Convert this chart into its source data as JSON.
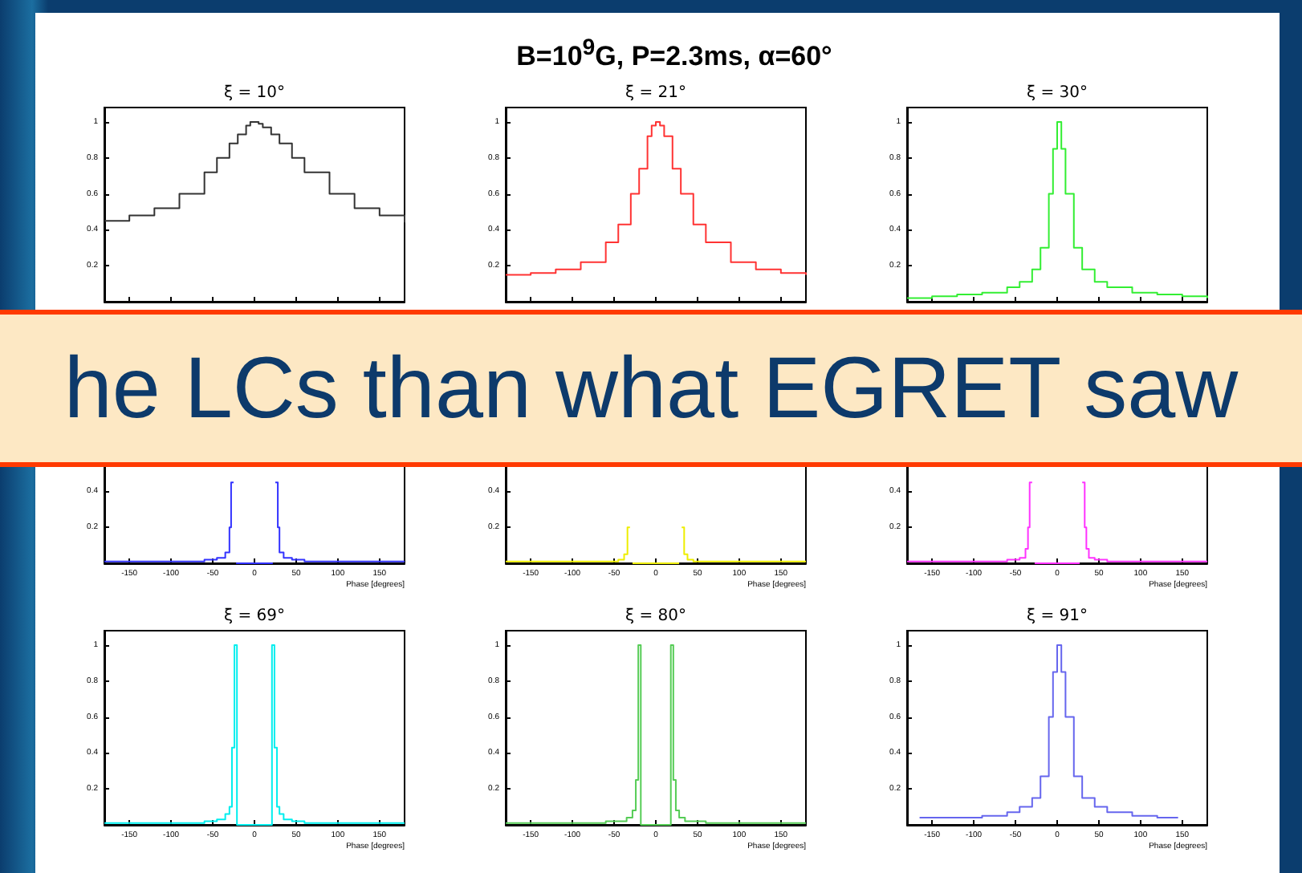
{
  "chart_data": [
    {
      "type": "other",
      "title": "B=10$^{9}$G, P=2.3ms, α=60°",
      "annotations": [
        "he LCs than what EGRET saw"
      ]
    },
    {
      "type": "step",
      "title": "ξ = 10°",
      "color": "#333333",
      "line_style": "solid",
      "marker": "none",
      "tick_labels": "y",
      "xlim": [
        -180,
        180
      ],
      "xticks": [
        -150,
        -100,
        -50,
        0,
        50,
        100,
        150
      ],
      "ylim": [
        0,
        1.08
      ],
      "yticks": [
        0.2,
        0.4,
        0.6,
        0.8,
        1
      ],
      "x": [
        -180,
        -150,
        -120,
        -90,
        -60,
        -45,
        -30,
        -20,
        -10,
        -5,
        0,
        5,
        10,
        20,
        30,
        45,
        60,
        90,
        120,
        150,
        180
      ],
      "values": [
        0.45,
        0.48,
        0.52,
        0.6,
        0.72,
        0.8,
        0.88,
        0.93,
        0.98,
        1,
        1,
        0.99,
        0.97,
        0.93,
        0.88,
        0.8,
        0.72,
        0.6,
        0.52,
        0.48,
        0.44
      ]
    },
    {
      "type": "step",
      "title": "ξ = 21°",
      "color": "#ff3333",
      "line_style": "solid",
      "marker": "none",
      "tick_labels": "y",
      "xlim": [
        -180,
        180
      ],
      "xticks": [
        -150,
        -100,
        -50,
        0,
        50,
        100,
        150
      ],
      "ylim": [
        0,
        1.08
      ],
      "yticks": [
        0.2,
        0.4,
        0.6,
        0.8,
        1
      ],
      "x": [
        -180,
        -150,
        -120,
        -90,
        -60,
        -45,
        -30,
        -20,
        -10,
        -5,
        0,
        5,
        10,
        20,
        30,
        45,
        60,
        90,
        120,
        150,
        180
      ],
      "values": [
        0.15,
        0.16,
        0.18,
        0.22,
        0.33,
        0.43,
        0.6,
        0.74,
        0.92,
        0.98,
        1,
        0.98,
        0.92,
        0.74,
        0.6,
        0.43,
        0.33,
        0.22,
        0.18,
        0.16,
        0.15
      ]
    },
    {
      "type": "step",
      "title": "ξ = 30°",
      "color": "#33ee33",
      "line_style": "solid",
      "marker": "none",
      "tick_labels": "y",
      "xlim": [
        -180,
        180
      ],
      "xticks": [
        -150,
        -100,
        -50,
        0,
        50,
        100,
        150
      ],
      "ylim": [
        0,
        1.08
      ],
      "yticks": [
        0.2,
        0.4,
        0.6,
        0.8,
        1
      ],
      "x": [
        -180,
        -150,
        -120,
        -90,
        -60,
        -45,
        -30,
        -20,
        -10,
        -5,
        0,
        5,
        10,
        20,
        30,
        45,
        60,
        90,
        120,
        150,
        180
      ],
      "values": [
        0.02,
        0.03,
        0.04,
        0.05,
        0.08,
        0.11,
        0.18,
        0.3,
        0.6,
        0.85,
        1,
        0.85,
        0.6,
        0.3,
        0.18,
        0.11,
        0.08,
        0.05,
        0.04,
        0.03,
        0.02
      ]
    },
    {
      "type": "step",
      "xlabel": "Phase [degrees]",
      "color": "#3333ff",
      "line_style": "solid",
      "marker": "none",
      "xlim": [
        -180,
        180
      ],
      "xticks": [
        -150,
        -100,
        -50,
        0,
        50,
        100,
        150
      ],
      "ylim": [
        0,
        1.08
      ],
      "yticks": [
        0.2,
        0.4
      ],
      "x": [
        -180,
        -90,
        -60,
        -45,
        -35,
        -30,
        -28,
        -25,
        -22,
        22,
        25,
        28,
        30,
        35,
        45,
        60,
        90,
        180
      ],
      "values": [
        0.01,
        0.01,
        0.02,
        0.03,
        0.06,
        0.2,
        0.45,
        null,
        0,
        null,
        0.45,
        0.2,
        0.06,
        0.03,
        0.02,
        0.01,
        0.01,
        0.01
      ]
    },
    {
      "type": "step",
      "xlabel": "Phase [degrees]",
      "color": "#eeee00",
      "line_style": "solid",
      "marker": "none",
      "xlim": [
        -180,
        180
      ],
      "xticks": [
        -150,
        -100,
        -50,
        0,
        50,
        100,
        150
      ],
      "ylim": [
        0,
        1.08
      ],
      "yticks": [
        0.2,
        0.4
      ],
      "x": [
        -180,
        -90,
        -60,
        -45,
        -38,
        -34,
        -31,
        -28,
        28,
        31,
        34,
        38,
        45,
        60,
        90,
        180
      ],
      "values": [
        0.01,
        0.01,
        0.01,
        0.02,
        0.05,
        0.2,
        null,
        0,
        null,
        0.2,
        0.05,
        0.02,
        0.01,
        0.01,
        0.01,
        0.01
      ]
    },
    {
      "type": "step",
      "xlabel": "Phase [degrees]",
      "color": "#ff33ff",
      "line_style": "solid",
      "marker": "none",
      "xlim": [
        -180,
        180
      ],
      "xticks": [
        -150,
        -100,
        -50,
        0,
        50,
        100,
        150
      ],
      "ylim": [
        0,
        1.08
      ],
      "yticks": [
        0.2,
        0.4
      ],
      "x": [
        -180,
        -90,
        -60,
        -45,
        -38,
        -35,
        -33,
        -30,
        -27,
        27,
        30,
        33,
        35,
        38,
        45,
        60,
        90,
        180
      ],
      "values": [
        0.01,
        0.01,
        0.02,
        0.03,
        0.08,
        0.2,
        0.45,
        null,
        0,
        null,
        0.45,
        0.2,
        0.08,
        0.03,
        0.02,
        0.01,
        0.01,
        0.01
      ]
    },
    {
      "type": "step",
      "title": "ξ = 69°",
      "xlabel": "Phase [degrees]",
      "color": "#00eeee",
      "line_style": "solid",
      "marker": "none",
      "xlim": [
        -180,
        180
      ],
      "xticks": [
        -150,
        -100,
        -50,
        0,
        50,
        100,
        150
      ],
      "ylim": [
        0,
        1.08
      ],
      "yticks": [
        0.2,
        0.4,
        0.6,
        0.8,
        1
      ],
      "x": [
        -180,
        -90,
        -60,
        -45,
        -35,
        -30,
        -27,
        -24,
        -21,
        21,
        24,
        27,
        30,
        35,
        45,
        60,
        90,
        180
      ],
      "values": [
        0.01,
        0.01,
        0.02,
        0.03,
        0.06,
        0.1,
        0.43,
        1,
        0,
        1,
        0.43,
        0.1,
        0.06,
        0.03,
        0.02,
        0.01,
        0.01,
        0.01
      ]
    },
    {
      "type": "step",
      "title": "ξ = 80°",
      "xlabel": "Phase [degrees]",
      "color": "#55cc55",
      "line_style": "solid",
      "marker": "none",
      "xlim": [
        -180,
        180
      ],
      "xticks": [
        -150,
        -100,
        -50,
        0,
        50,
        100,
        150
      ],
      "ylim": [
        0,
        1.08
      ],
      "yticks": [
        0.2,
        0.4,
        0.6,
        0.8,
        1
      ],
      "x": [
        -180,
        -90,
        -60,
        -45,
        -35,
        -28,
        -24,
        -21,
        -18,
        18,
        21,
        24,
        28,
        35,
        45,
        60,
        90,
        180
      ],
      "values": [
        0.01,
        0.01,
        0.02,
        0.02,
        0.04,
        0.08,
        0.25,
        1,
        0,
        1,
        0.25,
        0.08,
        0.04,
        0.02,
        0.02,
        0.01,
        0.01,
        0.01
      ]
    },
    {
      "type": "step",
      "title": "ξ = 91°",
      "xlabel": "Phase [degrees]",
      "color": "#6666ee",
      "line_style": "solid",
      "marker": "none",
      "xlim": [
        -180,
        180
      ],
      "xticks": [
        -150,
        -100,
        -50,
        0,
        50,
        100,
        150
      ],
      "ylim": [
        0,
        1.08
      ],
      "yticks": [
        0.2,
        0.4,
        0.6,
        0.8,
        1
      ],
      "x": [
        -165,
        -150,
        -120,
        -90,
        -60,
        -45,
        -30,
        -20,
        -10,
        -5,
        0,
        5,
        10,
        20,
        30,
        45,
        60,
        90,
        120,
        145
      ],
      "values": [
        0.04,
        0.04,
        0.04,
        0.05,
        0.07,
        0.1,
        0.15,
        0.27,
        0.6,
        0.85,
        1,
        0.85,
        0.6,
        0.27,
        0.15,
        0.1,
        0.07,
        0.05,
        0.04,
        0.04
      ]
    }
  ]
}
